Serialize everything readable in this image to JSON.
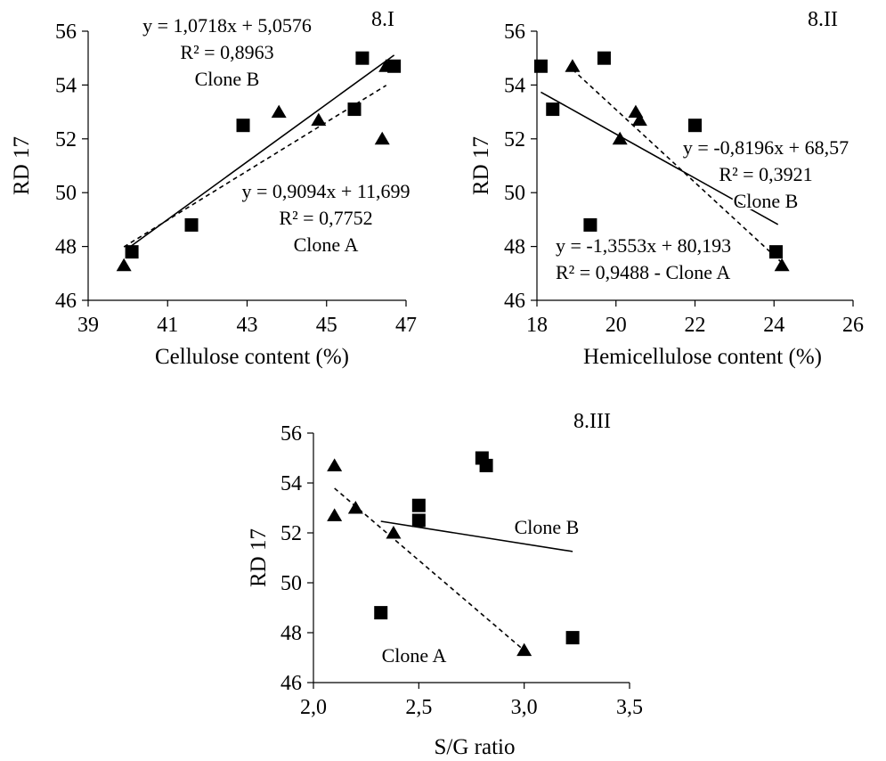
{
  "chart_data": [
    {
      "type": "scatter",
      "panel_label": "8.I",
      "xlabel": "Cellulose content (%)",
      "ylabel": "RD 17",
      "xlim": [
        39,
        47
      ],
      "ylim": [
        46,
        56
      ],
      "xticks": [
        39,
        41,
        43,
        45,
        47
      ],
      "yticks": [
        46,
        48,
        50,
        52,
        54,
        56
      ],
      "xtick_labels": [
        "39",
        "41",
        "43",
        "45",
        "47"
      ],
      "ytick_labels": [
        "46",
        "48",
        "50",
        "52",
        "54",
        "56"
      ],
      "series": [
        {
          "name": "Clone A",
          "marker": "triangle",
          "points": [
            [
              39.9,
              47.3
            ],
            [
              43.8,
              53.0
            ],
            [
              44.8,
              52.7
            ],
            [
              46.4,
              52.0
            ],
            [
              46.5,
              54.7
            ]
          ],
          "trend": {
            "style": "dashed",
            "slope": 0.9094,
            "intercept": 11.699,
            "x_range": [
              39.9,
              46.5
            ]
          },
          "equation": "y = 0,9094x + 11,699",
          "r2": "R² = 0,7752",
          "label": "Clone A"
        },
        {
          "name": "Clone B",
          "marker": "square",
          "points": [
            [
              40.1,
              47.8
            ],
            [
              41.6,
              48.8
            ],
            [
              42.9,
              52.5
            ],
            [
              45.7,
              53.1
            ],
            [
              45.9,
              55.0
            ],
            [
              46.7,
              54.7
            ]
          ],
          "trend": {
            "style": "solid",
            "slope": 1.0718,
            "intercept": 5.0576,
            "x_range": [
              40.0,
              46.7
            ]
          },
          "equation": "y = 1,0718x + 5,0576",
          "r2": "R² = 0,8963",
          "label": "Clone B"
        }
      ]
    },
    {
      "type": "scatter",
      "panel_label": "8.II",
      "xlabel": "Hemicellulose content (%)",
      "ylabel": "RD 17",
      "xlim": [
        18,
        26
      ],
      "ylim": [
        46,
        56
      ],
      "xticks": [
        18,
        20,
        22,
        24,
        26
      ],
      "yticks": [
        46,
        48,
        50,
        52,
        54,
        56
      ],
      "xtick_labels": [
        "18",
        "20",
        "22",
        "24",
        "26"
      ],
      "ytick_labels": [
        "46",
        "48",
        "50",
        "52",
        "54",
        "56"
      ],
      "series": [
        {
          "name": "Clone A",
          "marker": "triangle",
          "points": [
            [
              18.9,
              54.7
            ],
            [
              20.1,
              52.0
            ],
            [
              20.5,
              53.0
            ],
            [
              20.6,
              52.7
            ],
            [
              24.2,
              47.3
            ]
          ],
          "trend": {
            "style": "dashed",
            "slope": -1.3553,
            "intercept": 80.193,
            "x_range": [
              18.9,
              24.2
            ]
          },
          "equation": "y = -1,3553x + 80,193",
          "r2": "R² = 0,9488 - Clone A",
          "label": ""
        },
        {
          "name": "Clone B",
          "marker": "square",
          "points": [
            [
              18.1,
              54.7
            ],
            [
              18.4,
              53.1
            ],
            [
              19.35,
              48.8
            ],
            [
              19.7,
              55.0
            ],
            [
              22.0,
              52.5
            ],
            [
              24.05,
              47.8
            ]
          ],
          "trend": {
            "style": "solid",
            "slope": -0.8196,
            "intercept": 68.57,
            "x_range": [
              18.1,
              24.1
            ]
          },
          "equation": "y = -0,8196x + 68,57",
          "r2": "R² = 0,3921",
          "label": "Clone B"
        }
      ]
    },
    {
      "type": "scatter",
      "panel_label": "8.III",
      "xlabel": "S/G ratio",
      "ylabel": "RD 17",
      "xlim": [
        2.0,
        3.5
      ],
      "ylim": [
        46,
        56
      ],
      "xticks": [
        2.0,
        2.5,
        3.0,
        3.5
      ],
      "yticks": [
        46,
        48,
        50,
        52,
        54,
        56
      ],
      "xtick_labels": [
        "2,0",
        "2,5",
        "3,0",
        "3,5"
      ],
      "ytick_labels": [
        "46",
        "48",
        "50",
        "52",
        "54",
        "56"
      ],
      "series": [
        {
          "name": "Clone A",
          "marker": "triangle",
          "points": [
            [
              2.1,
              54.7
            ],
            [
              2.1,
              52.7
            ],
            [
              2.2,
              53.0
            ],
            [
              2.38,
              52.0
            ],
            [
              3.0,
              47.3
            ]
          ],
          "trend": {
            "style": "dashed",
            "slope": -7.22,
            "intercept": 68.95,
            "x_range": [
              2.1,
              3.0
            ]
          },
          "equation": "",
          "r2": "",
          "label": "Clone A"
        },
        {
          "name": "Clone B",
          "marker": "square",
          "points": [
            [
              2.32,
              48.8
            ],
            [
              2.5,
              53.1
            ],
            [
              2.5,
              52.5
            ],
            [
              2.8,
              55.0
            ],
            [
              2.82,
              54.7
            ],
            [
              3.23,
              47.8
            ]
          ],
          "trend": {
            "style": "solid",
            "slope": -1.33,
            "intercept": 55.55,
            "x_range": [
              2.32,
              3.23
            ]
          },
          "equation": "",
          "r2": "",
          "label": "Clone B"
        }
      ]
    }
  ]
}
